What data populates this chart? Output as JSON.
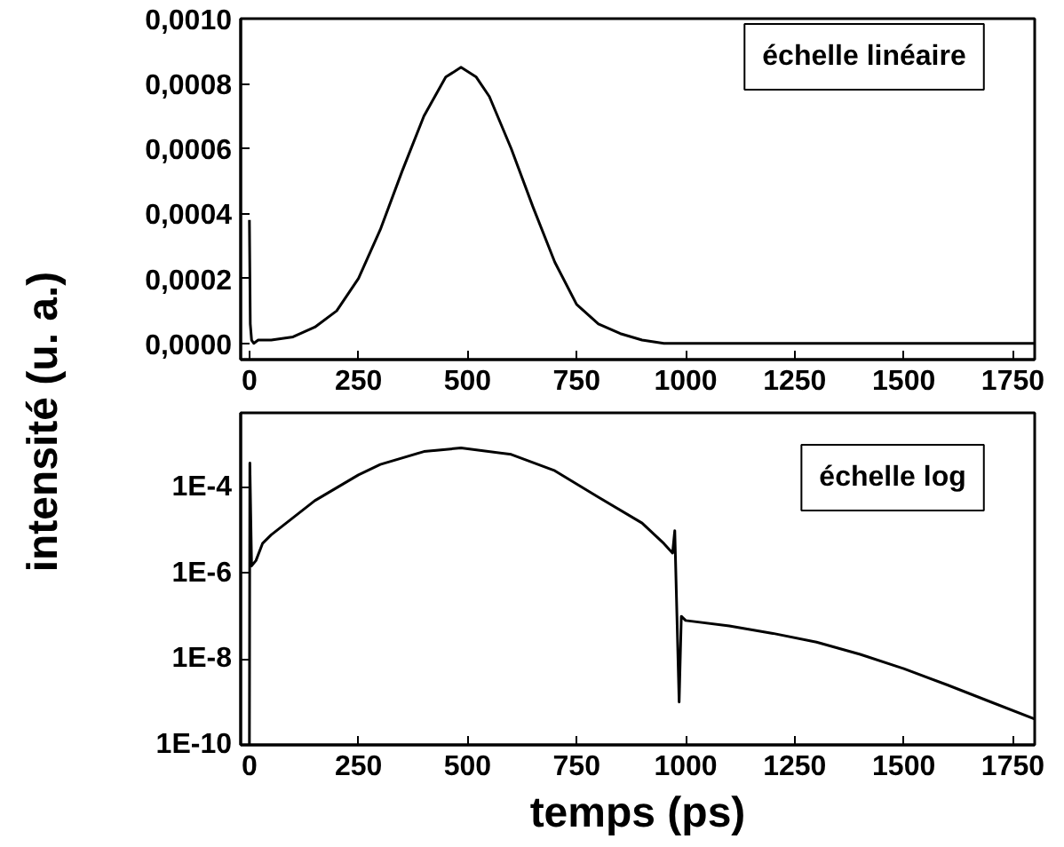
{
  "chart_data": [
    {
      "type": "line",
      "ylabel": "intensité (u. a.)",
      "annotations": [
        "échelle linéaire"
      ],
      "xlim": [
        -20,
        1800
      ],
      "xticks": [
        0,
        250,
        500,
        750,
        1000,
        1250,
        1500,
        1750
      ],
      "ylim": [
        -5e-05,
        0.001
      ],
      "yticks": [
        {
          "value": 0,
          "label": "0,0000"
        },
        {
          "value": 0.0002,
          "label": "0,0002"
        },
        {
          "value": 0.0004,
          "label": "0,0004"
        },
        {
          "value": 0.0006,
          "label": "0,0006"
        },
        {
          "value": 0.0008,
          "label": "0,0008"
        },
        {
          "value": 0.001,
          "label": "0,0010"
        }
      ],
      "grid": false,
      "series": [
        {
          "color": "#000000",
          "x": [
            0,
            2,
            5,
            10,
            20,
            50,
            100,
            150,
            200,
            250,
            300,
            350,
            400,
            450,
            485,
            520,
            550,
            600,
            650,
            700,
            750,
            800,
            850,
            900,
            950,
            980,
            1200,
            1500,
            1800
          ],
          "values": [
            0.00038,
            6e-05,
            1e-05,
            0.0,
            1e-05,
            1e-05,
            2e-05,
            5e-05,
            0.0001,
            0.0002,
            0.00035,
            0.00053,
            0.0007,
            0.00082,
            0.00085,
            0.00082,
            0.00076,
            0.0006,
            0.00042,
            0.00025,
            0.00012,
            6e-05,
            3e-05,
            1e-05,
            0.0,
            0.0,
            0.0,
            0.0,
            0.0
          ]
        }
      ]
    },
    {
      "type": "line",
      "xlabel": "temps (ps)",
      "annotations": [
        "échelle log"
      ],
      "xlim": [
        -20,
        1800
      ],
      "xticks": [
        0,
        250,
        500,
        750,
        1000,
        1250,
        1500,
        1750
      ],
      "log": "y",
      "ylim": [
        1e-10,
        0.0056
      ],
      "yticks": [
        {
          "value": 1e-10,
          "label": "1E-10"
        },
        {
          "value": 1e-08,
          "label": "1E-8"
        },
        {
          "value": 1e-06,
          "label": "1E-6"
        },
        {
          "value": 0.0001,
          "label": "1E-4"
        }
      ],
      "grid": false,
      "series": [
        {
          "color": "#000000",
          "x": [
            0,
            1,
            5,
            15,
            30,
            50,
            100,
            150,
            200,
            250,
            300,
            400,
            485,
            600,
            700,
            800,
            900,
            950,
            970,
            975,
            980,
            985,
            990,
            1000,
            1100,
            1200,
            1300,
            1400,
            1500,
            1600,
            1700,
            1800
          ],
          "values": [
            1e-10,
            0.00038,
            1.5e-06,
            2e-06,
            5e-06,
            8e-06,
            2e-05,
            5e-05,
            0.0001,
            0.0002,
            0.00035,
            0.0007,
            0.00085,
            0.0006,
            0.00025,
            6e-05,
            1.5e-05,
            5e-06,
            3e-06,
            1e-05,
            1e-07,
            1e-09,
            1e-07,
            8e-08,
            6e-08,
            4e-08,
            2.5e-08,
            1.3e-08,
            6e-09,
            2.5e-09,
            1e-09,
            4e-10
          ]
        }
      ]
    }
  ]
}
